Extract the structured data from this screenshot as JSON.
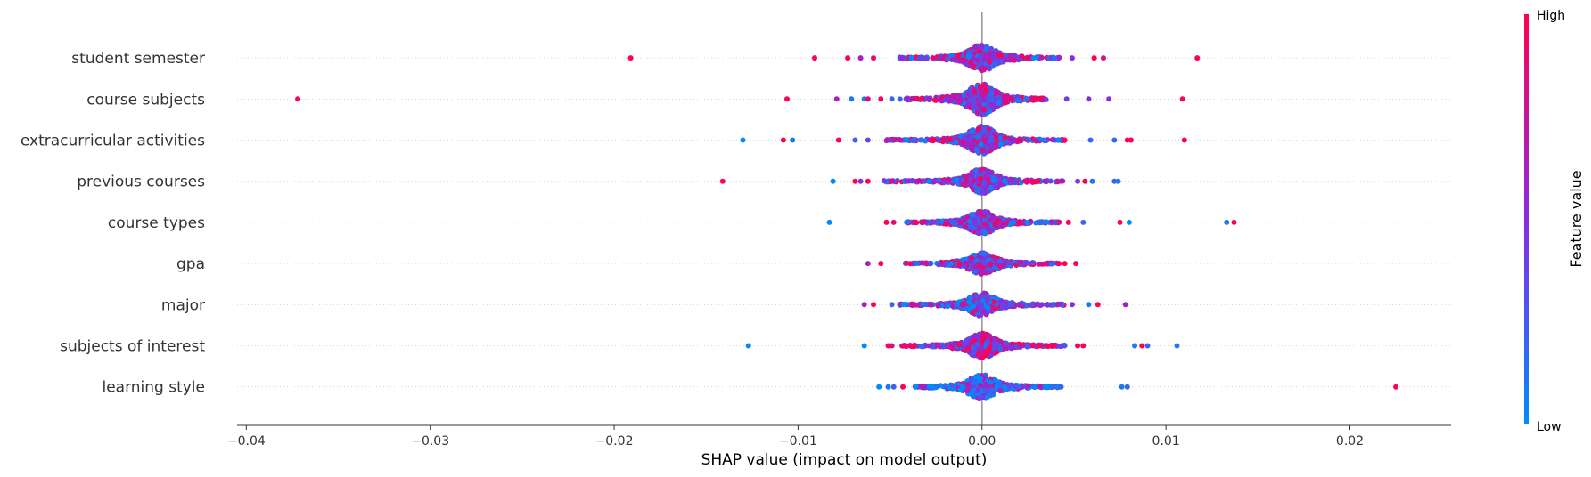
{
  "chart_data": {
    "type": "scatter",
    "subtype": "shap-beeswarm",
    "xlabel": "SHAP value (impact on model output)",
    "xlim": [
      -0.0405,
      0.0255
    ],
    "xticks": [
      -0.04,
      -0.03,
      -0.02,
      -0.01,
      0.0,
      0.01,
      0.02
    ],
    "xtick_labels": [
      "−0.04",
      "−0.03",
      "−0.02",
      "−0.01",
      "0.00",
      "0.01",
      "0.02"
    ],
    "colorbar": {
      "title": "Feature value",
      "high_label": "High",
      "low_label": "Low",
      "high_color": "#ff0052",
      "mid_color": "#8a2be2",
      "low_color": "#008bfb"
    },
    "features": [
      {
        "name": "student semester",
        "outliers": [
          [
            -0.0191,
            1
          ],
          [
            -0.0091,
            1
          ],
          [
            -0.0073,
            1
          ],
          [
            -0.0066,
            0.6
          ],
          [
            -0.0059,
            0.9
          ],
          [
            0.0049,
            0.5
          ],
          [
            0.0061,
            1
          ],
          [
            0.0066,
            0.8
          ],
          [
            0.0117,
            1
          ]
        ],
        "spread": [
          -0.0045,
          0.0042
        ],
        "width": 0.32,
        "color_bias": 0.55
      },
      {
        "name": "course subjects",
        "outliers": [
          [
            -0.0372,
            1
          ],
          [
            -0.0106,
            1
          ],
          [
            -0.0079,
            0.6
          ],
          [
            -0.0071,
            0.1
          ],
          [
            -0.0064,
            0.0
          ],
          [
            -0.0062,
            0.9
          ],
          [
            -0.0055,
            1
          ],
          [
            -0.0049,
            0.2
          ],
          [
            0.0046,
            0.4
          ],
          [
            0.0058,
            0.5
          ],
          [
            0.0069,
            0.5
          ],
          [
            0.0109,
            1
          ]
        ],
        "spread": [
          -0.0045,
          0.0035
        ],
        "width": 0.38,
        "color_bias": 0.55
      },
      {
        "name": "extracurricular activities",
        "outliers": [
          [
            -0.013,
            0.0
          ],
          [
            -0.0108,
            1
          ],
          [
            -0.0103,
            0.1
          ],
          [
            -0.0078,
            1
          ],
          [
            -0.0069,
            0.2
          ],
          [
            -0.0062,
            0.4
          ],
          [
            0.0045,
            1
          ],
          [
            0.0059,
            0.2
          ],
          [
            0.0072,
            0.2
          ],
          [
            0.0079,
            1
          ],
          [
            0.0081,
            1
          ],
          [
            0.011,
            1
          ]
        ],
        "spread": [
          -0.0052,
          0.0045
        ],
        "width": 0.34,
        "color_bias": 0.5
      },
      {
        "name": "previous courses",
        "outliers": [
          [
            -0.0141,
            1
          ],
          [
            -0.0081,
            0.0
          ],
          [
            -0.0069,
            1
          ],
          [
            -0.0066,
            0.5
          ],
          [
            -0.0062,
            1
          ],
          [
            0.0052,
            0.4
          ],
          [
            0.0056,
            1
          ],
          [
            0.006,
            0.1
          ],
          [
            0.0072,
            0.2
          ],
          [
            0.0074,
            0.1
          ]
        ],
        "spread": [
          -0.0055,
          0.0045
        ],
        "width": 0.3,
        "color_bias": 0.5
      },
      {
        "name": "course types",
        "outliers": [
          [
            -0.0083,
            0.0
          ],
          [
            -0.0052,
            1
          ],
          [
            -0.0048,
            0.9
          ],
          [
            0.0047,
            1
          ],
          [
            0.0055,
            0.2
          ],
          [
            0.0075,
            1
          ],
          [
            0.008,
            0.0
          ],
          [
            0.0133,
            0.1
          ],
          [
            0.0137,
            1
          ]
        ],
        "spread": [
          -0.0042,
          0.0042
        ],
        "width": 0.28,
        "color_bias": 0.45
      },
      {
        "name": "gpa",
        "outliers": [
          [
            -0.0062,
            0.6
          ],
          [
            -0.0055,
            1
          ],
          [
            0.0045,
            1
          ],
          [
            0.0051,
            1
          ]
        ],
        "spread": [
          -0.0042,
          0.0042
        ],
        "width": 0.26,
        "color_bias": 0.5
      },
      {
        "name": "major",
        "outliers": [
          [
            -0.0064,
            0.6
          ],
          [
            -0.0059,
            1
          ],
          [
            -0.0049,
            0.2
          ],
          [
            0.0049,
            0.5
          ],
          [
            0.0058,
            0.1
          ],
          [
            0.0063,
            1
          ],
          [
            0.0078,
            0.6
          ]
        ],
        "spread": [
          -0.0045,
          0.0045
        ],
        "width": 0.28,
        "color_bias": 0.45
      },
      {
        "name": "subjects of interest",
        "outliers": [
          [
            -0.0127,
            0.0
          ],
          [
            -0.0064,
            0.0
          ],
          [
            -0.0051,
            1
          ],
          [
            -0.0049,
            0.8
          ],
          [
            0.0052,
            1
          ],
          [
            0.0055,
            1
          ],
          [
            0.0083,
            0.1
          ],
          [
            0.0087,
            1
          ],
          [
            0.009,
            0.2
          ],
          [
            0.0106,
            0.1
          ]
        ],
        "spread": [
          -0.0045,
          0.0045
        ],
        "width": 0.3,
        "color_bias": 0.65
      },
      {
        "name": "learning style",
        "outliers": [
          [
            -0.0056,
            0.0
          ],
          [
            -0.0051,
            0.1
          ],
          [
            -0.0048,
            0.2
          ],
          [
            -0.0043,
            1
          ],
          [
            0.0043,
            0.2
          ],
          [
            0.0076,
            0.1
          ],
          [
            0.0079,
            0.2
          ],
          [
            0.0225,
            1
          ]
        ],
        "spread": [
          -0.0038,
          0.0042
        ],
        "width": 0.3,
        "color_bias": 0.3
      }
    ]
  }
}
